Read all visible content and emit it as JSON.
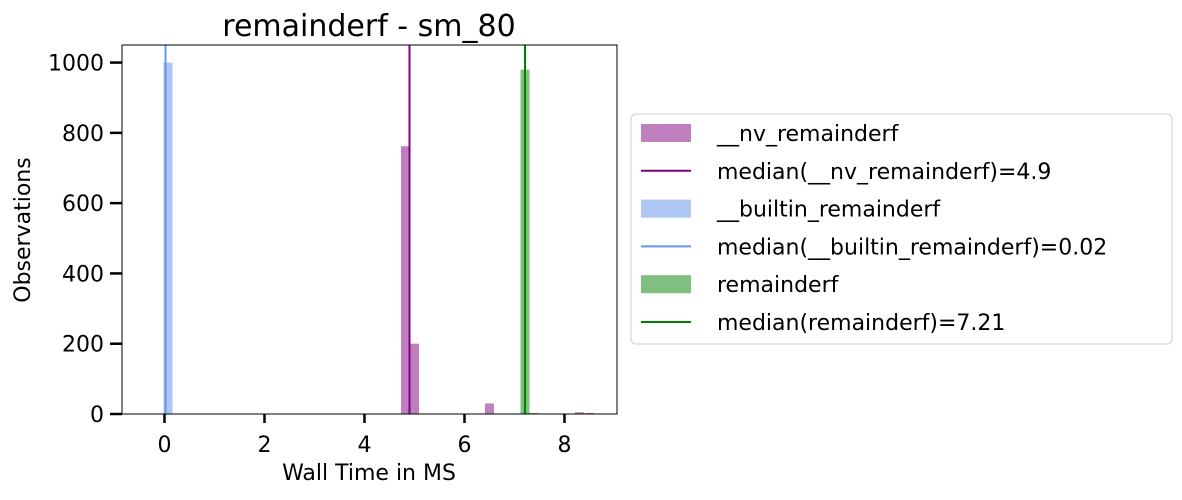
{
  "chart_data": {
    "type": "bar",
    "title": "remainderf - sm_80",
    "xlabel": "Wall Time in MS",
    "ylabel": "Observations",
    "xlim": [
      -0.85,
      9.05
    ],
    "ylim": [
      0,
      1050
    ],
    "xticks": [
      0,
      2,
      4,
      6,
      8
    ],
    "yticks": [
      0,
      200,
      400,
      600,
      800,
      1000
    ],
    "grid": false,
    "legend_position": "right",
    "bin_width": 0.18,
    "series": [
      {
        "name": "__nv_remainderf",
        "color": "#bf7fbf",
        "bars": [
          {
            "x": 4.82,
            "y": 762
          },
          {
            "x": 5.0,
            "y": 200
          },
          {
            "x": 6.5,
            "y": 30
          },
          {
            "x": 8.3,
            "y": 5
          },
          {
            "x": 8.5,
            "y": 3
          }
        ]
      },
      {
        "name": "__builtin_remainderf",
        "color": "#aec7f2",
        "bars": [
          {
            "x": 0.07,
            "y": 1000
          }
        ]
      },
      {
        "name": "remainderf",
        "color": "#7fbf7f",
        "bars": [
          {
            "x": 7.21,
            "y": 980
          },
          {
            "x": 7.39,
            "y": 3
          }
        ]
      }
    ],
    "medians": [
      {
        "name": "median(__nv_remainderf)=4.9",
        "value": 4.9,
        "color": "#800080"
      },
      {
        "name": "median(__builtin_remainderf)=0.02",
        "value": 0.02,
        "color": "#6495ed"
      },
      {
        "name": "median(remainderf)=7.21",
        "value": 7.21,
        "color": "#008000"
      }
    ],
    "legend": [
      {
        "label": "__nv_remainderf",
        "kind": "patch",
        "color": "#bf7fbf"
      },
      {
        "label": "median(__nv_remainderf)=4.9",
        "kind": "line",
        "color": "#800080"
      },
      {
        "label": "__builtin_remainderf",
        "kind": "patch",
        "color": "#aec7f2"
      },
      {
        "label": "median(__builtin_remainderf)=0.02",
        "kind": "line",
        "color": "#6495ed"
      },
      {
        "label": "remainderf",
        "kind": "patch",
        "color": "#7fbf7f"
      },
      {
        "label": "median(remainderf)=7.21",
        "kind": "line",
        "color": "#008000"
      }
    ]
  }
}
